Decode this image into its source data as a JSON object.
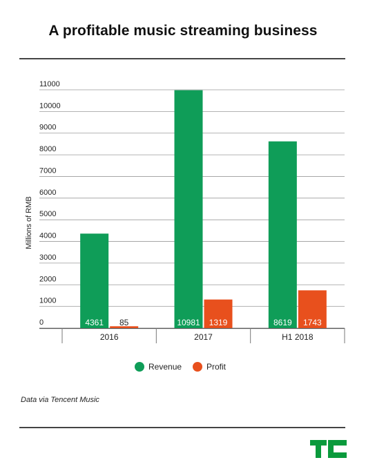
{
  "title": "A profitable music streaming business",
  "source_note": "Data via Tencent Music",
  "colors": {
    "revenue": "#0f9d58",
    "profit": "#e8501d",
    "logo": "#0a9a3c"
  },
  "logo_icon": "tc-logo-icon",
  "chart_data": {
    "type": "bar",
    "categories": [
      "2016",
      "2017",
      "H1 2018"
    ],
    "series": [
      {
        "name": "Revenue",
        "values": [
          4361,
          10981,
          8619
        ],
        "color": "#0f9d58"
      },
      {
        "name": "Profit",
        "values": [
          85,
          1319,
          1743
        ],
        "color": "#e8501d"
      }
    ],
    "data_labels": [
      [
        "4361",
        "85"
      ],
      [
        "10981",
        "1319"
      ],
      [
        "8619",
        "1743"
      ]
    ],
    "title": "",
    "xlabel": "",
    "ylabel": "Millions of RMB",
    "ylim": [
      0,
      11000
    ],
    "yticks": [
      0,
      1000,
      2000,
      3000,
      4000,
      5000,
      6000,
      7000,
      8000,
      9000,
      10000,
      11000
    ],
    "grid": true,
    "legend_position": "bottom-center"
  }
}
